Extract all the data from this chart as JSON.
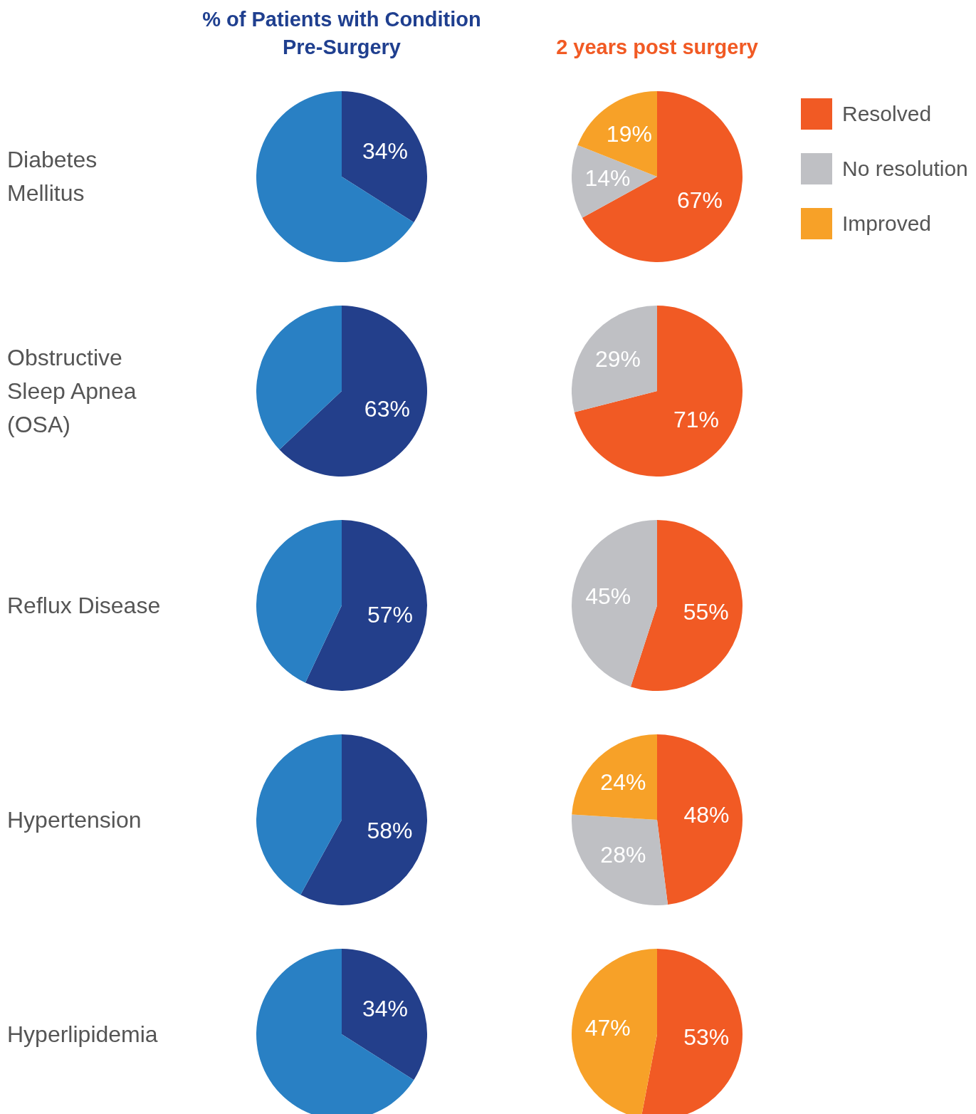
{
  "chart_data": [
    {
      "type": "pie",
      "title": "% of Patients with Condition Pre-Surgery",
      "ylabel": "Diabetes Mellitus",
      "categories": [
        null,
        null
      ],
      "values": [
        34,
        66
      ],
      "colors": [
        "#233f8b",
        "#2980c4"
      ],
      "value_labels": [
        "34%",
        null
      ]
    },
    {
      "type": "pie",
      "title": "2 years post surgery",
      "categories": [
        "Resolved",
        "No resolution",
        "Improved"
      ],
      "values": [
        67,
        14,
        19
      ],
      "colors": [
        "#f15a24",
        "#bfc0c4",
        "#f7a128"
      ],
      "value_labels": [
        "67%",
        "14%",
        "19%"
      ],
      "legend": "right"
    },
    {
      "type": "pie",
      "ylabel": "Obstructive Sleep Apnea (OSA)",
      "categories": [
        null,
        null
      ],
      "values": [
        63,
        37
      ],
      "colors": [
        "#233f8b",
        "#2980c4"
      ],
      "value_labels": [
        "63%",
        null
      ]
    },
    {
      "type": "pie",
      "categories": [
        null,
        null
      ],
      "values": [
        71,
        29
      ],
      "colors": [
        "#f15a24",
        "#bfc0c4"
      ],
      "value_labels": [
        "71%",
        "29%"
      ]
    },
    {
      "type": "pie",
      "ylabel": "Reflux Disease",
      "categories": [
        null,
        null
      ],
      "values": [
        57,
        43
      ],
      "colors": [
        "#233f8b",
        "#2980c4"
      ],
      "value_labels": [
        "57%",
        null
      ]
    },
    {
      "type": "pie",
      "categories": [
        null,
        null
      ],
      "values": [
        55,
        45
      ],
      "colors": [
        "#f15a24",
        "#bfc0c4"
      ],
      "value_labels": [
        "55%",
        "45%"
      ]
    },
    {
      "type": "pie",
      "ylabel": "Hypertension",
      "categories": [
        null,
        null
      ],
      "values": [
        58,
        42
      ],
      "colors": [
        "#233f8b",
        "#2980c4"
      ],
      "value_labels": [
        "58%",
        null
      ]
    },
    {
      "type": "pie",
      "categories": [
        null,
        null,
        null
      ],
      "values": [
        48,
        28,
        24
      ],
      "colors": [
        "#f15a24",
        "#bfc0c4",
        "#f7a128"
      ],
      "value_labels": [
        "48%",
        "28%",
        "24%"
      ]
    },
    {
      "type": "pie",
      "ylabel": "Hyperlipidemia",
      "categories": [
        null,
        null
      ],
      "values": [
        34,
        66
      ],
      "colors": [
        "#233f8b",
        "#2980c4"
      ],
      "value_labels": [
        "34%",
        null
      ]
    },
    {
      "type": "pie",
      "categories": [
        null,
        null
      ],
      "values": [
        53,
        47
      ],
      "colors": [
        "#f15a24",
        "#f7a128"
      ],
      "value_labels": [
        "53%",
        "47%"
      ]
    }
  ]
}
